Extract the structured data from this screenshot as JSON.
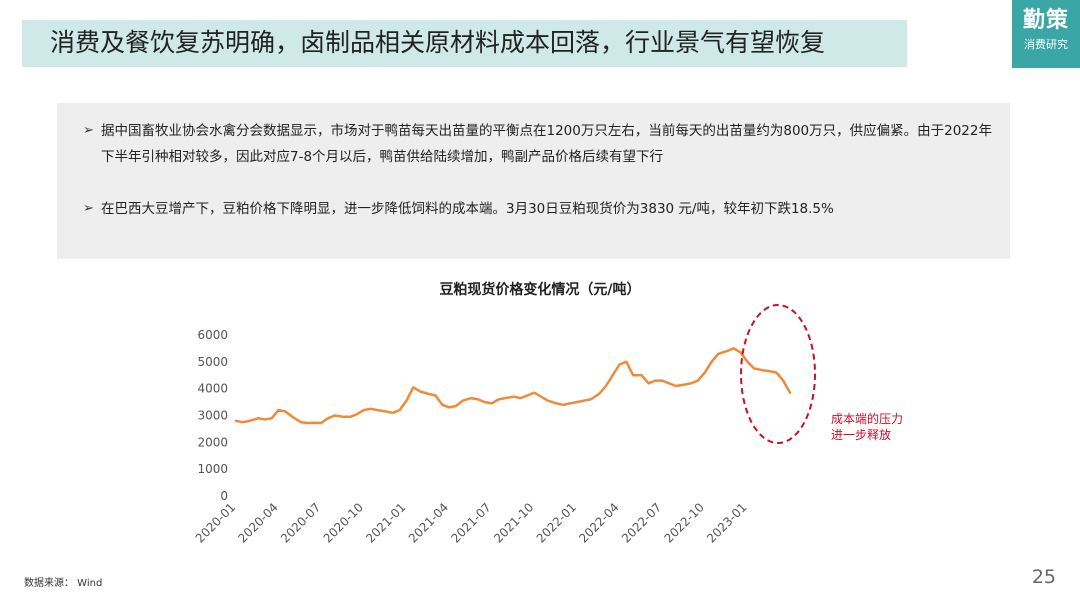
{
  "header": {
    "title": "消费及餐饮复苏明确，卤制品相关原材料成本回落，行业景气有望恢复",
    "brand_main": "勤策",
    "brand_sub": "消费研究"
  },
  "bullets": [
    {
      "mark": "➢",
      "text": "据中国畜牧业协会水禽分会数据显示，市场对于鸭苗每天出苗量的平衡点在1200万只左右，当前每天的出苗量约为800万只，供应偏紧。由于2022年下半年引种相对较多，因此对应7-8个月以后，鸭苗供给陆续增加，鸭副产品价格后续有望下行"
    },
    {
      "mark": "➢",
      "text": "在巴西大豆增产下，豆粕价格下降明显，进一步降低饲料的成本端。3月30日豆粕现货价为3830 元/吨，较年初下跌18.5%"
    }
  ],
  "chart_data": {
    "type": "line",
    "title": "豆粕现货价格变化情况（元/吨）",
    "xlabel": "",
    "ylabel": "",
    "ylim": [
      0,
      6000
    ],
    "yticks": [
      "0",
      "1000",
      "2000",
      "3000",
      "4000",
      "5000",
      "6000"
    ],
    "xticks": [
      "2020-01",
      "2020-04",
      "2020-07",
      "2020-10",
      "2021-01",
      "2021-04",
      "2021-07",
      "2021-10",
      "2022-01",
      "2022-04",
      "2022-07",
      "2022-10",
      "2023-01"
    ],
    "grid": false,
    "line_color": "#ee8b3a",
    "annotation": {
      "text_line1": "成本端的压力",
      "text_line2": "进一步释放",
      "color": "#c8102e"
    },
    "series": [
      {
        "x": [
          2020.0,
          2020.04,
          2020.08,
          2020.13,
          2020.17,
          2020.21,
          2020.25,
          2020.29,
          2020.33,
          2020.38,
          2020.42,
          2020.46,
          2020.5,
          2020.54,
          2020.58,
          2020.63,
          2020.67,
          2020.71,
          2020.75,
          2020.79,
          2020.83,
          2020.88,
          2020.92,
          2020.96,
          2021.0,
          2021.04,
          2021.08,
          2021.13,
          2021.17,
          2021.21,
          2021.25,
          2021.29,
          2021.33,
          2021.38,
          2021.42,
          2021.46,
          2021.5,
          2021.54,
          2021.58,
          2021.63,
          2021.67,
          2021.71,
          2021.75,
          2021.79,
          2021.83,
          2021.88,
          2021.92,
          2021.96,
          2022.0,
          2022.04,
          2022.08,
          2022.13,
          2022.17,
          2022.21,
          2022.25,
          2022.29,
          2022.33,
          2022.38,
          2022.42,
          2022.46,
          2022.5,
          2022.54,
          2022.58,
          2022.63,
          2022.67,
          2022.71,
          2022.75,
          2022.79,
          2022.83,
          2022.88,
          2022.92,
          2022.96,
          2023.0,
          2023.04,
          2023.08,
          2023.13,
          2023.17,
          2023.21,
          2023.25
        ],
        "values": [
          2800,
          2750,
          2800,
          2900,
          2850,
          2900,
          3200,
          3150,
          2950,
          2750,
          2720,
          2730,
          2720,
          2900,
          3000,
          2950,
          2950,
          3050,
          3200,
          3250,
          3200,
          3150,
          3100,
          3200,
          3550,
          4050,
          3900,
          3800,
          3750,
          3400,
          3300,
          3350,
          3550,
          3650,
          3600,
          3500,
          3450,
          3600,
          3650,
          3700,
          3650,
          3750,
          3850,
          3700,
          3550,
          3450,
          3400,
          3450,
          3500,
          3550,
          3600,
          3800,
          4100,
          4500,
          4900,
          5000,
          4500,
          4500,
          4200,
          4300,
          4300,
          4200,
          4100,
          4150,
          4200,
          4300,
          4600,
          5000,
          5300,
          5400,
          5500,
          5350,
          5000,
          4750,
          4700,
          4650,
          4600,
          4300,
          3850
        ]
      }
    ]
  },
  "footer": {
    "source": "数据来源： Wind",
    "page": "25"
  }
}
